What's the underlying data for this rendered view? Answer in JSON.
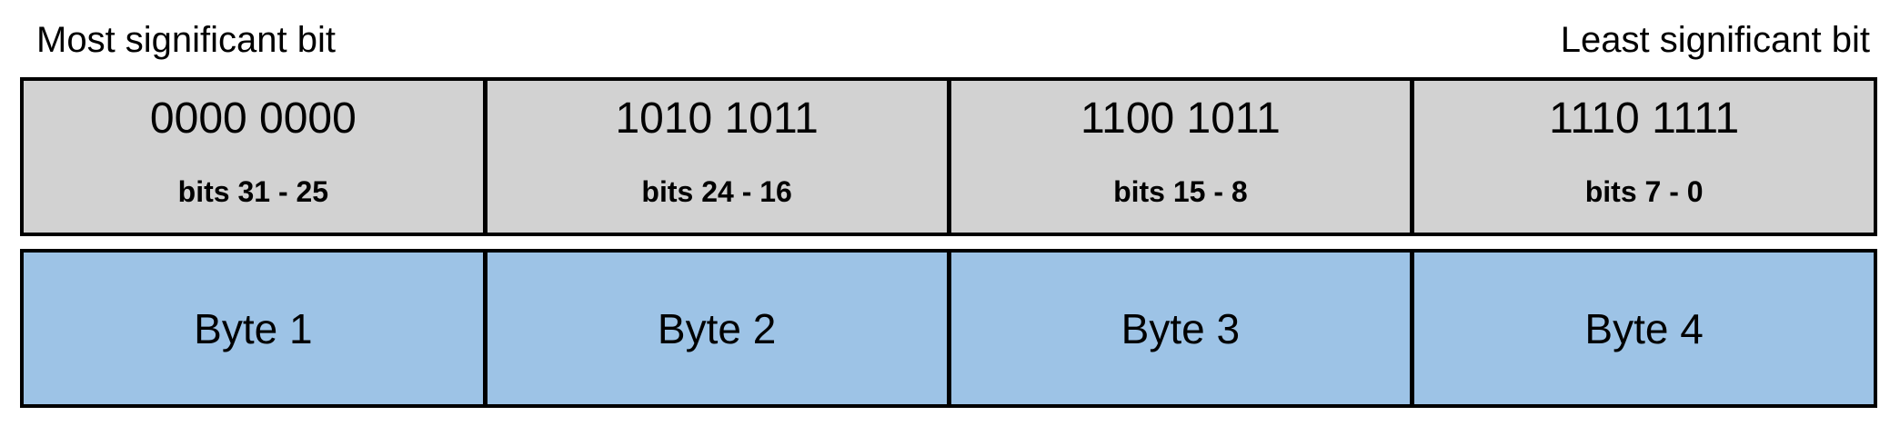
{
  "header": {
    "left_label": "Most significant bit",
    "right_label": "Least significant bit"
  },
  "bit_row": {
    "cells": [
      {
        "value": "0000 0000",
        "range": "bits 31 - 25"
      },
      {
        "value": "1010 1011",
        "range": "bits 24 - 16"
      },
      {
        "value": "1100 1011",
        "range": "bits 15 - 8"
      },
      {
        "value": "1110 1111",
        "range": "bits 7 - 0"
      }
    ]
  },
  "byte_row": {
    "cells": [
      {
        "label": "Byte 1"
      },
      {
        "label": "Byte 2"
      },
      {
        "label": "Byte 3"
      },
      {
        "label": "Byte 4"
      }
    ]
  },
  "colors": {
    "bit_cell_bg": "#d2d2d2",
    "byte_cell_bg": "#9dc3e6",
    "border": "#000000",
    "page_bg": "#ffffff",
    "text": "#000000"
  }
}
